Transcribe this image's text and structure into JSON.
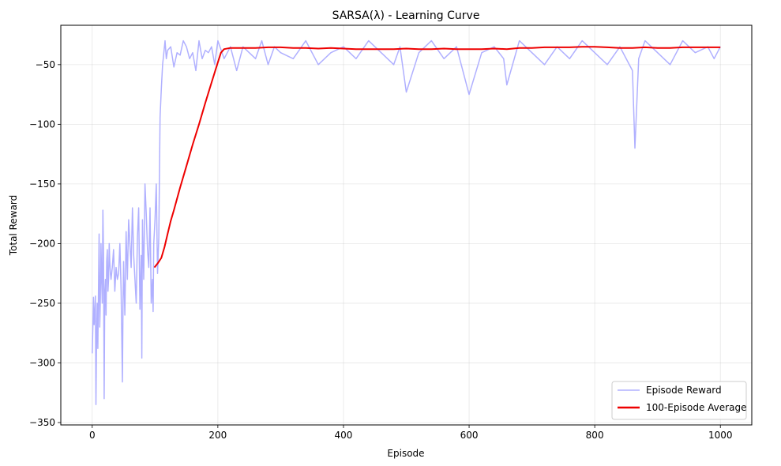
{
  "chart_data": {
    "type": "line",
    "title": "SARSA(λ) - Learning Curve",
    "xlabel": "Episode",
    "ylabel": "Total Reward",
    "xlim": [
      -50,
      1050
    ],
    "ylim": [
      -352,
      -17
    ],
    "xticks": [
      0,
      200,
      400,
      600,
      800,
      1000
    ],
    "yticks": [
      -350,
      -300,
      -250,
      -200,
      -150,
      -100,
      -50
    ],
    "grid": true,
    "legend_position": "bottom-right",
    "series": [
      {
        "name": "Episode Reward",
        "color": "#b0b0ff",
        "x": [
          0,
          1,
          2,
          3,
          4,
          5,
          6,
          7,
          8,
          9,
          10,
          11,
          12,
          13,
          14,
          15,
          16,
          17,
          18,
          19,
          20,
          21,
          22,
          23,
          24,
          25,
          26,
          27,
          28,
          29,
          30,
          32,
          34,
          36,
          38,
          40,
          42,
          44,
          46,
          48,
          49,
          50,
          52,
          54,
          56,
          58,
          60,
          62,
          64,
          66,
          68,
          70,
          72,
          74,
          76,
          78,
          79,
          80,
          82,
          84,
          86,
          88,
          90,
          92,
          94,
          96,
          97,
          98,
          100,
          102,
          104,
          106,
          108,
          110,
          112,
          114,
          116,
          118,
          120,
          125,
          130,
          135,
          140,
          145,
          150,
          155,
          160,
          165,
          170,
          175,
          180,
          185,
          190,
          195,
          200,
          210,
          220,
          230,
          240,
          250,
          260,
          270,
          280,
          290,
          300,
          320,
          340,
          360,
          380,
          400,
          420,
          440,
          460,
          480,
          490,
          500,
          520,
          540,
          560,
          580,
          600,
          620,
          640,
          655,
          660,
          680,
          700,
          720,
          740,
          760,
          780,
          800,
          820,
          840,
          860,
          864,
          870,
          880,
          900,
          920,
          940,
          960,
          980,
          990,
          1000
        ],
        "y": [
          -292,
          -270,
          -245,
          -268,
          -260,
          -244,
          -335,
          -280,
          -250,
          -288,
          -240,
          -192,
          -270,
          -245,
          -200,
          -230,
          -250,
          -172,
          -210,
          -330,
          -240,
          -230,
          -260,
          -215,
          -205,
          -240,
          -230,
          -200,
          -215,
          -225,
          -230,
          -220,
          -205,
          -240,
          -220,
          -230,
          -225,
          -200,
          -240,
          -316,
          -250,
          -215,
          -260,
          -190,
          -230,
          -180,
          -200,
          -220,
          -170,
          -210,
          -230,
          -250,
          -195,
          -170,
          -255,
          -210,
          -296,
          -180,
          -230,
          -150,
          -175,
          -205,
          -220,
          -170,
          -250,
          -230,
          -257,
          -200,
          -180,
          -150,
          -225,
          -195,
          -94,
          -70,
          -50,
          -40,
          -30,
          -45,
          -38,
          -35,
          -52,
          -40,
          -42,
          -30,
          -35,
          -45,
          -40,
          -55,
          -30,
          -45,
          -38,
          -40,
          -35,
          -50,
          -30,
          -45,
          -35,
          -55,
          -35,
          -40,
          -45,
          -30,
          -50,
          -35,
          -40,
          -45,
          -30,
          -50,
          -40,
          -35,
          -45,
          -30,
          -40,
          -50,
          -35,
          -73,
          -40,
          -30,
          -45,
          -35,
          -75,
          -40,
          -35,
          -45,
          -67,
          -30,
          -40,
          -50,
          -35,
          -45,
          -30,
          -40,
          -50,
          -35,
          -55,
          -120,
          -45,
          -30,
          -40,
          -50,
          -30,
          -40,
          -35,
          -45,
          -35
        ]
      },
      {
        "name": "100-Episode Average",
        "color": "#ee0000",
        "x": [
          99,
          105,
          110,
          115,
          120,
          125,
          130,
          140,
          150,
          160,
          170,
          180,
          190,
          200,
          205,
          210,
          220,
          240,
          260,
          280,
          300,
          320,
          340,
          360,
          380,
          400,
          420,
          440,
          460,
          480,
          500,
          520,
          540,
          560,
          580,
          600,
          620,
          640,
          660,
          680,
          700,
          720,
          740,
          760,
          780,
          800,
          820,
          840,
          860,
          880,
          900,
          920,
          940,
          960,
          980,
          1000
        ],
        "y": [
          -220,
          -216,
          -212,
          -203,
          -192,
          -181,
          -172,
          -153,
          -135,
          -117,
          -100,
          -82,
          -65,
          -48,
          -40,
          -37,
          -36,
          -36,
          -36,
          -35.5,
          -35.5,
          -36,
          -36,
          -36.5,
          -36,
          -36.5,
          -37,
          -37,
          -37,
          -37,
          -36.5,
          -37,
          -37,
          -36.5,
          -37,
          -37,
          -37,
          -36.5,
          -37,
          -36,
          -36,
          -35.5,
          -35.5,
          -35.5,
          -35,
          -35,
          -35.5,
          -36,
          -36,
          -35.5,
          -36,
          -36,
          -35.5,
          -35.5,
          -35.5,
          -35.5
        ]
      }
    ]
  }
}
